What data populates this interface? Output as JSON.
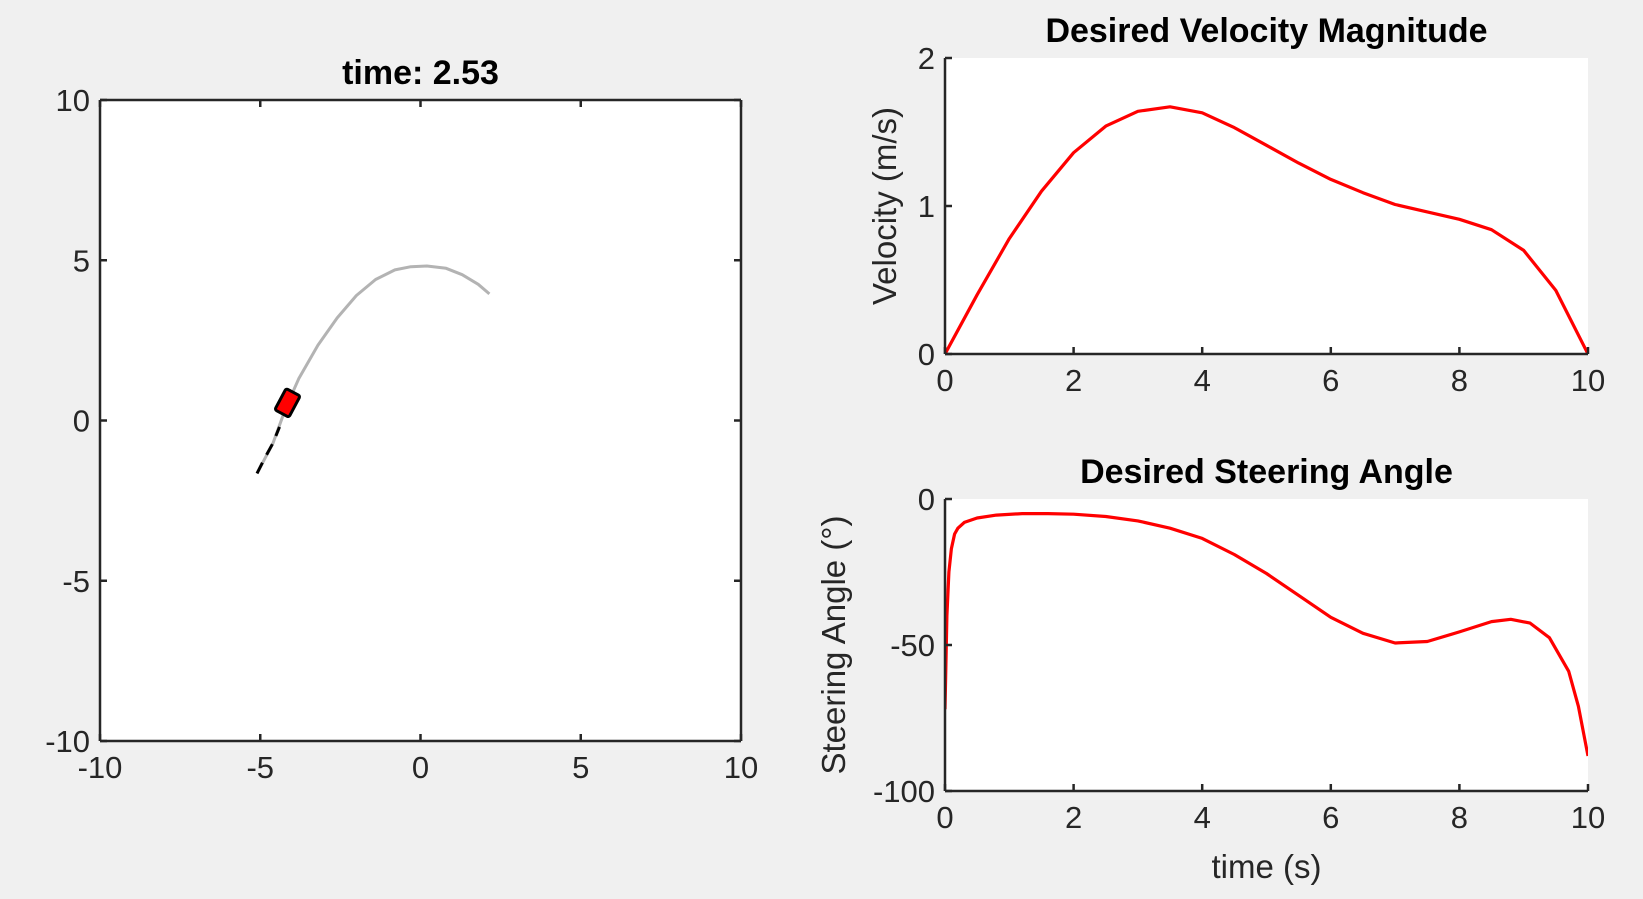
{
  "figure": {
    "background": "#f0f0f0",
    "axes_color": "#262626",
    "plot_background": "#ffffff"
  },
  "chart_data": [
    {
      "id": "trajectory",
      "type": "line",
      "title": "time: 2.53",
      "xlabel": "",
      "ylabel": "",
      "xlim": [
        -10,
        10
      ],
      "ylim": [
        -10,
        10
      ],
      "xticks": [
        -10,
        -5,
        0,
        5,
        10
      ],
      "yticks": [
        -10,
        -5,
        0,
        5,
        10
      ],
      "grid": false,
      "box": true,
      "series": [
        {
          "color": "#b3b3b3",
          "style": "solid",
          "x": [
            -5.1,
            -4.6,
            -4.2,
            -3.8,
            -3.2,
            -2.6,
            -2.0,
            -1.4,
            -0.8,
            -0.3,
            0.2,
            0.8,
            1.3,
            1.8,
            2.15
          ],
          "y": [
            -1.65,
            -0.7,
            0.4,
            1.3,
            2.35,
            3.2,
            3.9,
            4.4,
            4.7,
            4.8,
            4.82,
            4.75,
            4.55,
            4.25,
            3.95
          ]
        },
        {
          "color": "#000000",
          "style": "dashed",
          "x": [
            -5.1,
            -4.85,
            -4.6,
            -4.4
          ],
          "y": [
            -1.65,
            -1.15,
            -0.7,
            -0.2
          ]
        }
      ],
      "vehicle": {
        "x": -4.15,
        "y": 0.55,
        "heading_deg": 62,
        "fill": "#ff0000",
        "edge": "#000000"
      }
    },
    {
      "id": "velocity",
      "type": "line",
      "title": "Desired Velocity Magnitude",
      "xlabel": "",
      "ylabel": "Velocity (m/s)",
      "xlim": [
        0,
        10
      ],
      "ylim": [
        0,
        2
      ],
      "xticks": [
        0,
        2,
        4,
        6,
        8,
        10
      ],
      "yticks": [
        0,
        1,
        2
      ],
      "grid": false,
      "box": false,
      "series": [
        {
          "color": "#ff0000",
          "x": [
            0,
            0.5,
            1,
            1.5,
            2,
            2.5,
            3,
            3.5,
            4,
            4.5,
            5,
            5.5,
            6,
            6.5,
            7,
            7.5,
            8,
            8.5,
            9,
            9.5,
            10
          ],
          "y": [
            0,
            0.4,
            0.78,
            1.1,
            1.36,
            1.54,
            1.64,
            1.67,
            1.63,
            1.53,
            1.41,
            1.29,
            1.18,
            1.09,
            1.01,
            0.96,
            0.91,
            0.84,
            0.7,
            0.43,
            0
          ]
        }
      ]
    },
    {
      "id": "steering",
      "type": "line",
      "title": "Desired Steering Angle",
      "xlabel": "time (s)",
      "ylabel": "Steering Angle (°)",
      "xlim": [
        0,
        10
      ],
      "ylim": [
        -100,
        0
      ],
      "xticks": [
        0,
        2,
        4,
        6,
        8,
        10
      ],
      "yticks": [
        -100,
        -50,
        0
      ],
      "grid": false,
      "box": false,
      "series": [
        {
          "color": "#ff0000",
          "x": [
            0,
            0.03,
            0.06,
            0.1,
            0.15,
            0.2,
            0.3,
            0.5,
            0.8,
            1.2,
            1.6,
            2,
            2.5,
            3,
            3.5,
            4,
            4.5,
            5,
            5.5,
            6,
            6.5,
            7,
            7.5,
            8,
            8.5,
            8.8,
            9.1,
            9.4,
            9.7,
            9.85,
            10
          ],
          "y": [
            -72,
            -40,
            -25,
            -17,
            -12,
            -10,
            -8,
            -6.5,
            -5.5,
            -5,
            -5,
            -5.2,
            -6,
            -7.5,
            -10,
            -13.5,
            -19,
            -25.5,
            -33,
            -40.5,
            -46,
            -49.3,
            -48.8,
            -45.5,
            -42,
            -41.2,
            -42.5,
            -47.5,
            -59,
            -71,
            -88
          ]
        }
      ]
    }
  ]
}
